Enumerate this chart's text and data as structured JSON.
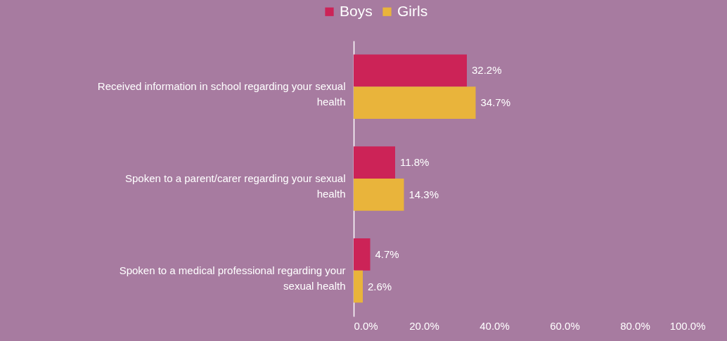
{
  "chart_data": {
    "type": "bar",
    "orientation": "horizontal",
    "categories": [
      "Received information in school regarding your sexual health",
      "Spoken to a parent/carer regarding your sexual health",
      "Spoken to a medical professional regarding your sexual health"
    ],
    "series": [
      {
        "name": "Boys",
        "color": "#cc2357",
        "values": [
          32.2,
          11.8,
          4.7
        ],
        "value_labels": [
          "32.2%",
          "11.8%",
          "4.7%"
        ]
      },
      {
        "name": "Girls",
        "color": "#e9b43b",
        "values": [
          34.7,
          14.3,
          2.6
        ],
        "value_labels": [
          "34.7%",
          "14.3%",
          "2.6%"
        ]
      }
    ],
    "xlim": [
      0,
      100
    ],
    "xticks": [
      {
        "value": 0,
        "label": "0.0%"
      },
      {
        "value": 20,
        "label": "20.0%"
      },
      {
        "value": 40,
        "label": "40.0%"
      },
      {
        "value": 60,
        "label": "60.0%"
      },
      {
        "value": 80,
        "label": "80.0%"
      },
      {
        "value": 100,
        "label": "100.0%"
      }
    ],
    "grid": false,
    "legend": "top"
  }
}
